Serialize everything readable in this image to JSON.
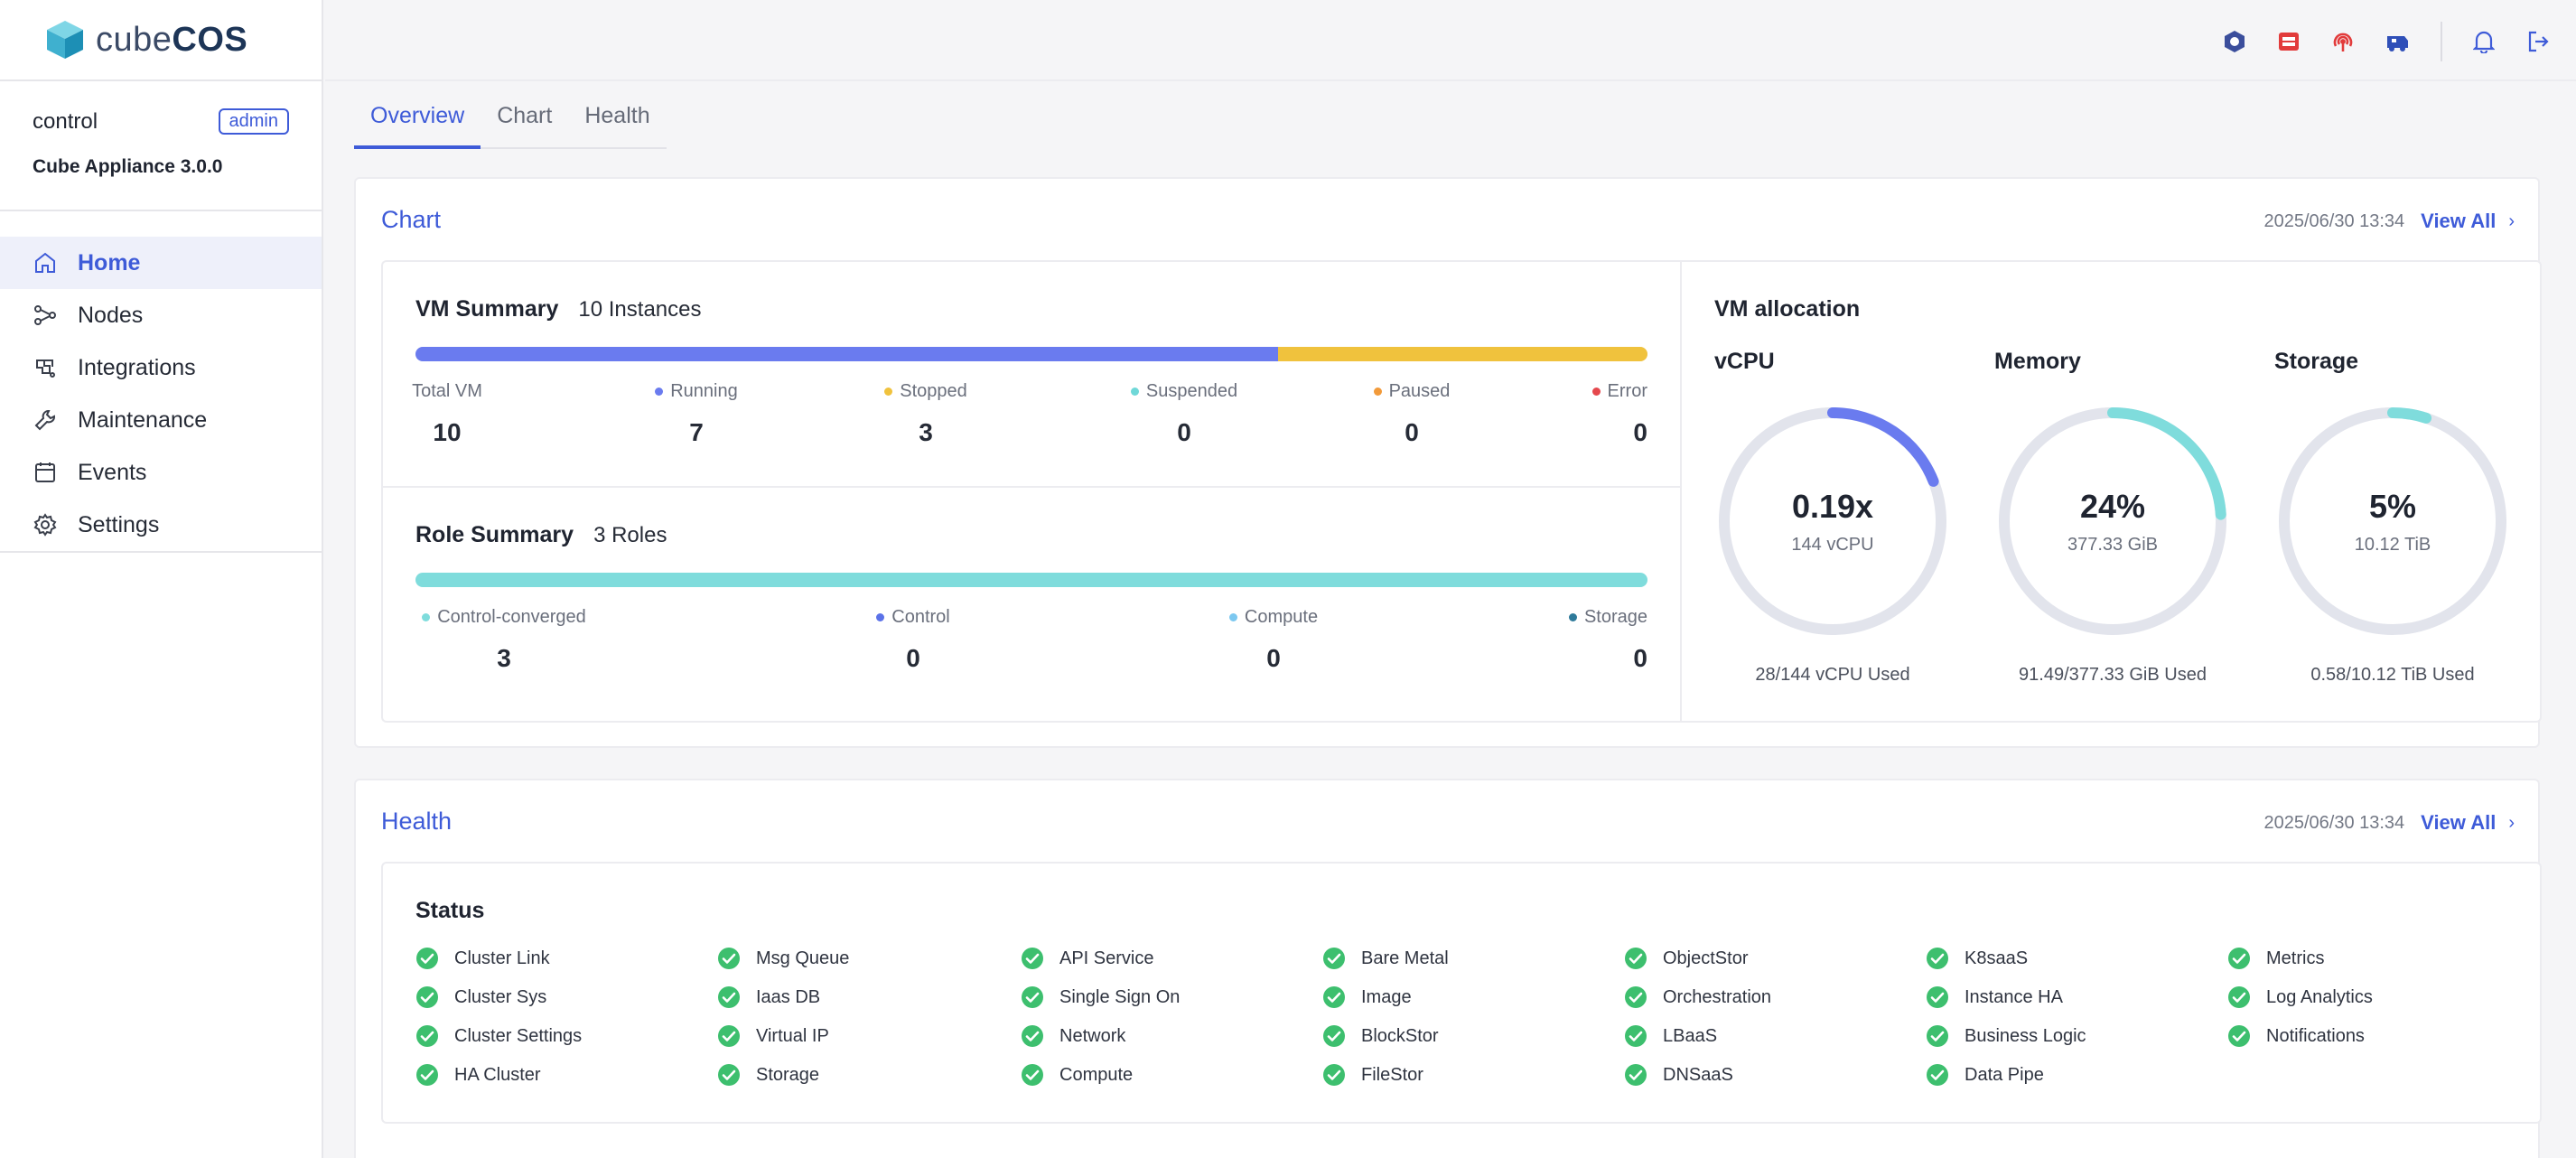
{
  "sidebar": {
    "brand_prefix": "cube",
    "brand_suffix": "COS",
    "username": "control",
    "role_badge": "admin",
    "appliance": "Cube Appliance 3.0.0",
    "items": [
      {
        "label": "Home",
        "icon": "home-icon",
        "active": true
      },
      {
        "label": "Nodes",
        "icon": "nodes-icon"
      },
      {
        "label": "Integrations",
        "icon": "integrations-icon"
      },
      {
        "label": "Maintenance",
        "icon": "maintenance-icon"
      },
      {
        "label": "Events",
        "icon": "events-icon"
      },
      {
        "label": "Settings",
        "icon": "settings-icon"
      }
    ]
  },
  "topbar": {
    "icons": [
      "service-icon-1",
      "service-icon-2",
      "service-icon-3",
      "service-icon-4",
      "bell-icon",
      "logout-icon"
    ],
    "colors": {
      "service1": "#3b4e9c",
      "service2": "#e23b3b",
      "service3": "#e23b3b",
      "service4": "#2f4fb8",
      "accent": "#3e5bd8"
    }
  },
  "tabs": [
    {
      "label": "Overview",
      "active": true
    },
    {
      "label": "Chart"
    },
    {
      "label": "Health"
    }
  ],
  "chart_card": {
    "title": "Chart",
    "timestamp": "2025/06/30 13:34",
    "view_all": "View All",
    "vm_summary": {
      "title": "VM Summary",
      "count_label": "10 Instances",
      "bar": [
        {
          "name": "Running",
          "value": 7,
          "color": "#6a7bef"
        },
        {
          "name": "Stopped",
          "value": 3,
          "color": "#f0c23d"
        }
      ],
      "stats": [
        {
          "label": "Total VM",
          "value": "10",
          "color": ""
        },
        {
          "label": "Running",
          "value": "7",
          "color": "#6a7bef"
        },
        {
          "label": "Stopped",
          "value": "3",
          "color": "#f0c23d"
        },
        {
          "label": "Suspended",
          "value": "0",
          "color": "#6fd8d8"
        },
        {
          "label": "Paused",
          "value": "0",
          "color": "#f29a3a"
        },
        {
          "label": "Error",
          "value": "0",
          "color": "#e5484d"
        }
      ]
    },
    "role_summary": {
      "title": "Role Summary",
      "count_label": "3 Roles",
      "bar_color": "#7fdcdc",
      "stats": [
        {
          "label": "Control-converged",
          "value": "3",
          "color": "#7fdcdc"
        },
        {
          "label": "Control",
          "value": "0",
          "color": "#5b72e8"
        },
        {
          "label": "Compute",
          "value": "0",
          "color": "#7cc8f0"
        },
        {
          "label": "Storage",
          "value": "0",
          "color": "#2e7a9a"
        }
      ]
    },
    "vm_allocation": {
      "title": "VM allocation",
      "gauges": [
        {
          "title": "vCPU",
          "big": "0.19x",
          "sub": "144 vCPU",
          "footer": "28/144 vCPU Used",
          "fraction": 0.19,
          "color": "#6a7bef"
        },
        {
          "title": "Memory",
          "big": "24%",
          "sub": "377.33 GiB",
          "footer": "91.49/377.33 GiB Used",
          "fraction": 0.24,
          "color": "#7fdcdc"
        },
        {
          "title": "Storage",
          "big": "5%",
          "sub": "10.12 TiB",
          "footer": "0.58/10.12 TiB Used",
          "fraction": 0.05,
          "color": "#7fdcdc"
        }
      ]
    }
  },
  "health_card": {
    "title": "Health",
    "timestamp": "2025/06/30 13:34",
    "view_all": "View All",
    "status_title": "Status",
    "ok_color": "#3dbf6e",
    "columns": [
      [
        "Cluster Link",
        "Cluster Sys",
        "Cluster Settings",
        "HA Cluster"
      ],
      [
        "Msg Queue",
        "Iaas DB",
        "Virtual IP",
        "Storage"
      ],
      [
        "API Service",
        "Single Sign On",
        "Network",
        "Compute"
      ],
      [
        "Bare Metal",
        "Image",
        "BlockStor",
        "FileStor"
      ],
      [
        "ObjectStor",
        "Orchestration",
        "LBaaS",
        "DNSaaS"
      ],
      [
        "K8saaS",
        "Instance HA",
        "Business Logic",
        "Data Pipe"
      ],
      [
        "Metrics",
        "Log Analytics",
        "Notifications"
      ]
    ]
  }
}
